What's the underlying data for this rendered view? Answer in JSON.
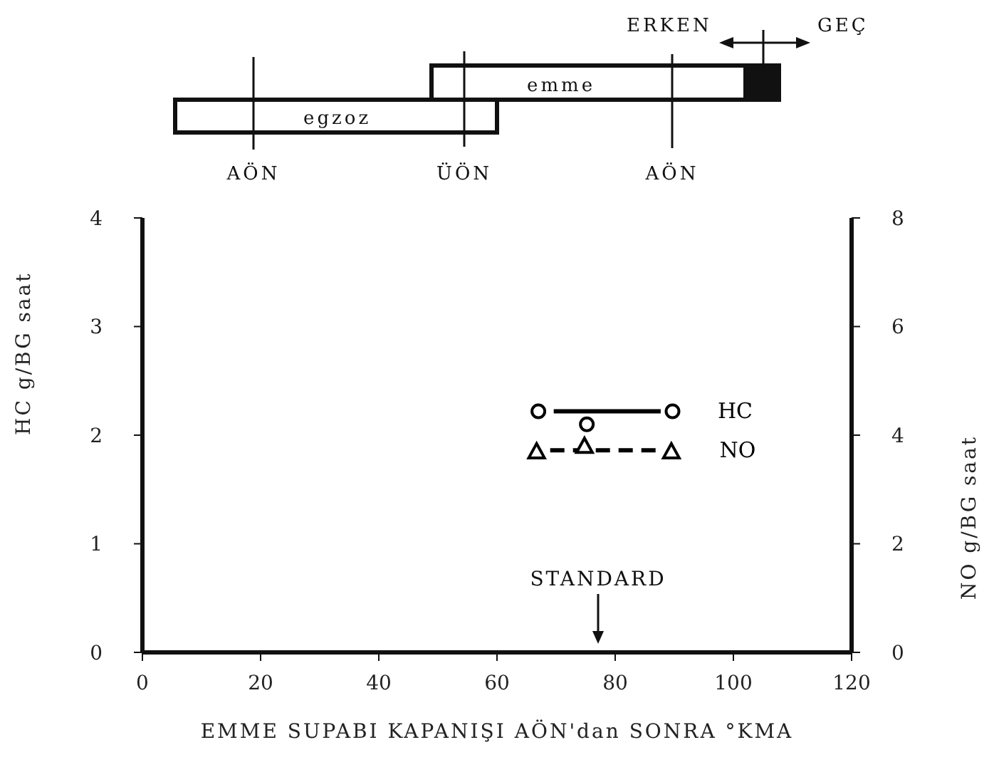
{
  "chart_data": {
    "type": "line",
    "xlabel": "EMME SUPABI KAPANIŞI    AÖN'dan SONRA °KMA",
    "ylabel": "HC     g/BG saat",
    "y2label": "NO     g/BG saat",
    "xlim": [
      0,
      120
    ],
    "xticks": [
      0,
      20,
      40,
      60,
      80,
      100,
      120
    ],
    "ylim": [
      0,
      4
    ],
    "yticks": [
      0,
      1,
      2,
      3,
      4
    ],
    "y2lim": [
      0,
      8
    ],
    "y2ticks": [
      0,
      2,
      4,
      6,
      8
    ],
    "grid": false,
    "legend": false,
    "series": [
      {
        "name": "HC",
        "type": "line",
        "color": "#000000",
        "x": [
          69.6,
          87.7
        ],
        "values": [
          2.22,
          2.22
        ],
        "line_style": "solid",
        "marker": "none"
      },
      {
        "type": "scatter",
        "color": "#000000",
        "x": [
          67,
          75.2,
          89.7
        ],
        "values": [
          2.22,
          2.1,
          2.22
        ],
        "marker": "circle"
      },
      {
        "name": "NO",
        "type": "line",
        "axis": "y2",
        "color": "#000000",
        "x": [
          69,
          88
        ],
        "values": [
          3.72,
          3.72
        ],
        "line_style": "dashed",
        "marker": "none"
      },
      {
        "type": "scatter",
        "axis": "y2",
        "color": "#000000",
        "x": [
          66.7,
          74.8,
          89.5
        ],
        "values": [
          3.7,
          3.8,
          3.7
        ],
        "marker": "triangle"
      }
    ],
    "annotations": [
      "egzoz",
      "emme",
      "AÖN",
      "ÜÖN",
      "AÖN",
      "ERKEN",
      "GEÇ",
      "STANDARD"
    ]
  }
}
